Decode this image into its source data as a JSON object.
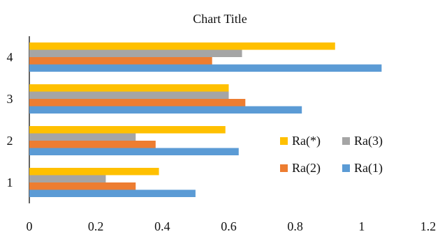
{
  "chart_data": {
    "type": "bar",
    "orientation": "horizontal",
    "title": "Chart Title",
    "categories": [
      "1",
      "2",
      "3",
      "4"
    ],
    "series": [
      {
        "name": "Ra(1)",
        "color": "#5B9BD5",
        "values": [
          0.5,
          0.63,
          0.82,
          1.06
        ]
      },
      {
        "name": "Ra(2)",
        "color": "#ED7D31",
        "values": [
          0.32,
          0.38,
          0.65,
          0.55
        ]
      },
      {
        "name": "Ra(3)",
        "color": "#A5A5A5",
        "values": [
          0.23,
          0.32,
          0.6,
          0.64
        ]
      },
      {
        "name": "Ra(*)",
        "color": "#FFC000",
        "values": [
          0.39,
          0.59,
          0.6,
          0.92
        ]
      }
    ],
    "xlim": [
      0,
      1.2
    ],
    "x_ticks": [
      "0",
      "0.2",
      "0.4",
      "0.6",
      "0.8",
      "1",
      "1.2"
    ],
    "grid": false,
    "legend": {
      "placement": "right-middle",
      "order": [
        "Ra(*)",
        "Ra(3)",
        "Ra(2)",
        "Ra(1)"
      ]
    }
  }
}
